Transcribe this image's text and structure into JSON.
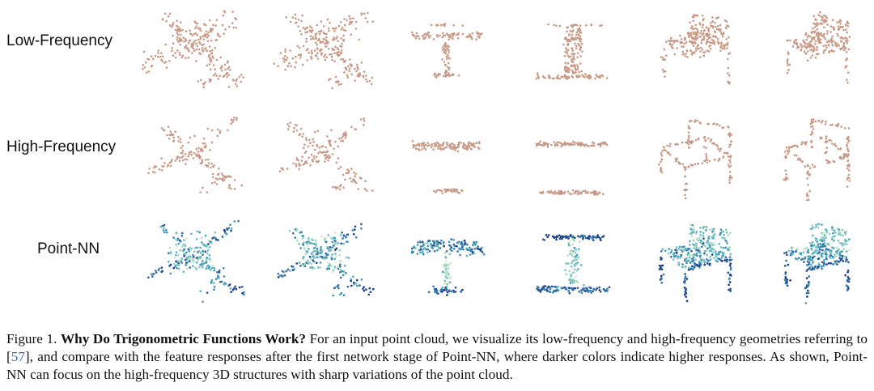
{
  "row_labels": {
    "low": "Low-Frequency",
    "high": "High-Frequency",
    "pnn": "Point-NN"
  },
  "caption": {
    "fig_num": "Figure 1.",
    "title": "Why Do Trigonometric Functions Work?",
    "text_1": "For an input point cloud, we visualize its low-frequency and high-frequency geometries referring to ",
    "ref": "57",
    "text_2": ", and compare with the feature responses after the first network stage of Point-NN, where darker colors indicate higher responses. As shown, Point-NN can focus on the high-frequency 3D structures with sharp variations of the point cloud."
  },
  "colors": {
    "low_freq_points": "#c99a86",
    "high_freq_points": "#c99a86",
    "response_low": "#d8ebc4",
    "response_mid": "#4fb0c2",
    "response_high": "#1f3f8f",
    "reference_link": "#2a6fb0"
  },
  "objects": [
    "airplane",
    "airplane",
    "table",
    "table",
    "chair",
    "chair"
  ]
}
